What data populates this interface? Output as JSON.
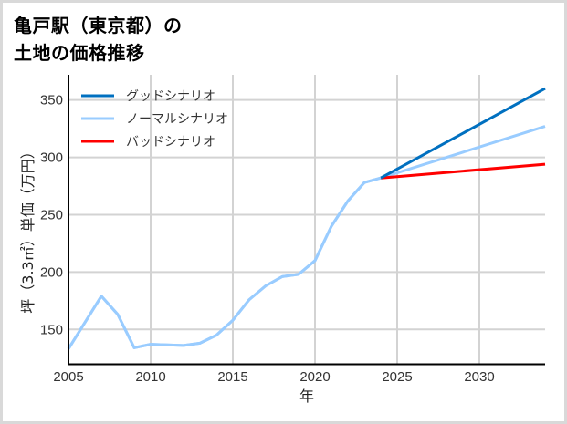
{
  "title": {
    "line1": "亀戸駅（東京都）の",
    "line2": "土地の価格推移"
  },
  "chart_data": {
    "type": "line",
    "title": "亀戸駅（東京都）の土地の価格推移",
    "xlabel": "年",
    "ylabel": "坪（3.3㎡）単価（万円）",
    "xlim": [
      2005,
      2034
    ],
    "ylim": [
      120,
      372
    ],
    "xticks": [
      2005,
      2010,
      2015,
      2020,
      2025,
      2030
    ],
    "yticks": [
      150,
      200,
      250,
      300,
      350
    ],
    "grid": true,
    "legend_position": "upper left",
    "series": [
      {
        "name": "グッドシナリオ",
        "color": "#0070C0",
        "x": [
          2024,
          2034
        ],
        "values": [
          282,
          360
        ]
      },
      {
        "name": "ノーマルシナリオ",
        "color": "#99CCFF",
        "x": [
          2005,
          2006,
          2007,
          2008,
          2009,
          2010,
          2011,
          2012,
          2013,
          2014,
          2015,
          2016,
          2017,
          2018,
          2019,
          2020,
          2021,
          2022,
          2023,
          2024,
          2034
        ],
        "values": [
          133,
          156,
          179,
          163,
          134,
          137,
          136.5,
          136,
          138,
          145,
          158,
          176,
          188,
          196,
          198,
          210,
          240,
          262,
          278,
          282,
          327
        ]
      },
      {
        "name": "バッドシナリオ",
        "color": "#FF0000",
        "x": [
          2024,
          2034
        ],
        "values": [
          282,
          294
        ]
      }
    ]
  },
  "axes": {
    "xlabel": "年",
    "ylabel": "坪（3.3㎡）単価（万円）",
    "xticks": [
      "2005",
      "2010",
      "2015",
      "2020",
      "2025",
      "2030"
    ],
    "yticks": [
      "150",
      "200",
      "250",
      "300",
      "350"
    ]
  },
  "legend": [
    {
      "label": "グッドシナリオ",
      "color": "#0070C0"
    },
    {
      "label": "ノーマルシナリオ",
      "color": "#99CCFF"
    },
    {
      "label": "バッドシナリオ",
      "color": "#FF0000"
    }
  ]
}
